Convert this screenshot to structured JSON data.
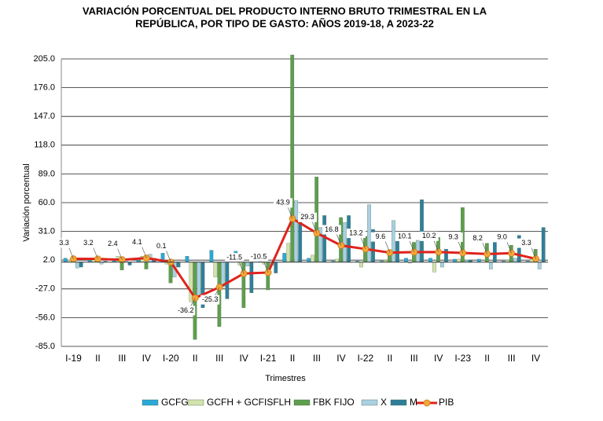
{
  "chart_data": {
    "type": "bar",
    "title": [
      "VARIACIÓN PORCENTUAL DEL PRODUCTO INTERNO BRUTO TRIMESTRAL  EN LA",
      "REPÚBLICA, POR TIPO  DE GASTO: AÑOS 2019-18, A 2023-22"
    ],
    "y_label": "Variación porcentual",
    "x_label": "Trimestres",
    "categories": [
      "I-19",
      "II",
      "III",
      "IV",
      "I-20",
      "II",
      "III",
      "IV",
      "I-21",
      "II",
      "III",
      "IV",
      "I-22",
      "II",
      "III",
      "IV",
      "I-23",
      "II",
      "III",
      "IV"
    ],
    "ylim": [
      -85,
      205
    ],
    "yticks": [
      {
        "value": -85,
        "label": "-85.0"
      },
      {
        "value": -56,
        "label": "-56.0"
      },
      {
        "value": -27,
        "label": "-27.0"
      },
      {
        "value": 2,
        "label": "2.0"
      },
      {
        "value": 31,
        "label": "31.0"
      },
      {
        "value": 60,
        "label": "60.0"
      },
      {
        "value": 89,
        "label": "89.0"
      },
      {
        "value": 118,
        "label": "118.0"
      },
      {
        "value": 147,
        "label": "147.0"
      },
      {
        "value": 176,
        "label": "176.0"
      },
      {
        "value": 205,
        "label": "205.0"
      }
    ],
    "grid": true,
    "legend": "bottom",
    "series": [
      {
        "name": "GCFG",
        "type": "bar",
        "color": "#2ba8d9",
        "values": [
          4,
          2,
          2,
          2,
          9,
          6,
          12,
          11,
          6,
          9,
          4,
          1,
          1,
          1,
          4,
          4,
          3,
          3,
          1,
          1
        ]
      },
      {
        "name": "GCFH + GCFISFLH",
        "type": "bar",
        "color": "#d3e2ad",
        "values": [
          2,
          3,
          6,
          6,
          -2,
          -40,
          -15,
          -3,
          -2,
          19,
          7,
          3,
          -5,
          2,
          -1,
          -10,
          3,
          0,
          2,
          3
        ]
      },
      {
        "name": "FBK FIJO",
        "type": "bar",
        "color": "#5e9e4c",
        "values": [
          2,
          1,
          -8,
          -7,
          -21,
          -78,
          -65,
          -46,
          -28,
          209,
          86,
          45,
          26,
          10,
          20,
          25,
          55,
          19,
          17,
          13
        ]
      },
      {
        "name": "X",
        "type": "bar",
        "color": "#a9d0e2",
        "values": [
          -6,
          -2,
          3,
          8,
          -15,
          -35,
          -25,
          -4,
          -3,
          62,
          35,
          40,
          58,
          42,
          22,
          -5,
          2,
          -7,
          4,
          -7
        ]
      },
      {
        "name": "M",
        "type": "bar",
        "color": "#2f7f9b",
        "values": [
          -5,
          1,
          -3,
          4,
          -5,
          -46,
          -37,
          -31,
          -11,
          50,
          47,
          47,
          33,
          26,
          63,
          13,
          2,
          23,
          27,
          35
        ]
      },
      {
        "name": "PIB",
        "type": "line",
        "color": "#e0221c",
        "marker_color": "#f4a83a",
        "values": [
          3.3,
          3.2,
          2.4,
          4.1,
          0.1,
          -36.2,
          -25.3,
          -11.5,
          -10.5,
          43.9,
          29.3,
          16.8,
          13.2,
          9.6,
          10.1,
          10.2,
          9.3,
          8.2,
          9,
          3.3
        ],
        "value_labels": [
          "3.3",
          "3.2",
          "2.4",
          "4.1",
          "0.1",
          "-36.2",
          "-25.3",
          "-11.5",
          "-10.5",
          "43.9",
          "29.3",
          "16.8",
          "13.2",
          "9.6",
          "10.1",
          "10.2",
          "9.3",
          "8.2",
          "9.0",
          "3.3"
        ]
      }
    ]
  }
}
